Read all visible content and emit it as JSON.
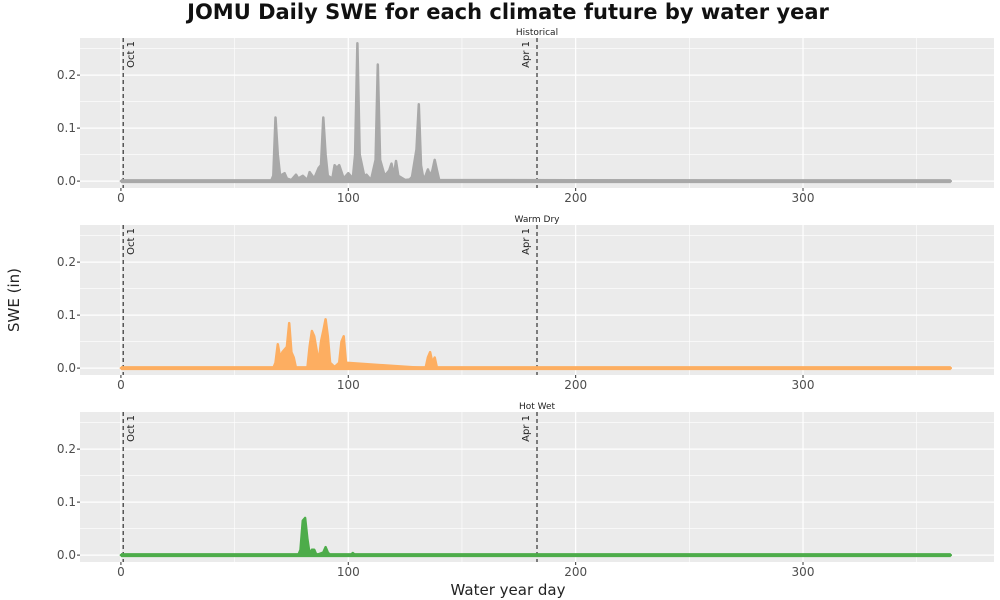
{
  "title": "JOMU Daily SWE for each climate future by water year",
  "chart_data": [
    {
      "type": "area",
      "facet": "Historical",
      "color": "#a8a8a8",
      "x": [
        0,
        66,
        67,
        68,
        69,
        70,
        72,
        73,
        75,
        77,
        78,
        80,
        82,
        83,
        85,
        87,
        88,
        89,
        90,
        91,
        93,
        94,
        95,
        96,
        98,
        100,
        102,
        103,
        104,
        105,
        107,
        108,
        110,
        112,
        113,
        114,
        116,
        118,
        119,
        120,
        121,
        122,
        125,
        127,
        128,
        130,
        131,
        132,
        133,
        134,
        135,
        136,
        137,
        138,
        139,
        140,
        365
      ],
      "y": [
        0,
        0,
        0.01,
        0.12,
        0.05,
        0.01,
        0.015,
        0.005,
        0.002,
        0.012,
        0.005,
        0.01,
        0.002,
        0.017,
        0.005,
        0.025,
        0.03,
        0.12,
        0.05,
        0.01,
        0.005,
        0.03,
        0.025,
        0.03,
        0.005,
        0.015,
        0.005,
        0.05,
        0.26,
        0.05,
        0.01,
        0.012,
        0.002,
        0.04,
        0.22,
        0.04,
        0.01,
        0.02,
        0.033,
        0.01,
        0.038,
        0.01,
        0.002,
        0.003,
        0.008,
        0.06,
        0.145,
        0.03,
        0.005,
        0.01,
        0.022,
        0.01,
        0.02,
        0.04,
        0.02,
        0.002,
        0
      ]
    },
    {
      "type": "area",
      "facet": "Warm Dry",
      "color": "#fdae61",
      "x": [
        0,
        67,
        68,
        69,
        70,
        71,
        72,
        73,
        74,
        75,
        76,
        77,
        82,
        83,
        84,
        85,
        86,
        87,
        88,
        89,
        90,
        91,
        92,
        94,
        96,
        97,
        98,
        99,
        134,
        135,
        136,
        137,
        138,
        139,
        365
      ],
      "y": [
        0,
        0,
        0.01,
        0.045,
        0.02,
        0.03,
        0.035,
        0.04,
        0.085,
        0.03,
        0.02,
        0,
        0,
        0.04,
        0.07,
        0.06,
        0.035,
        0.01,
        0.05,
        0.07,
        0.092,
        0.06,
        0.01,
        0.002,
        0.01,
        0.05,
        0.06,
        0.01,
        0,
        0.02,
        0.03,
        0.01,
        0.02,
        0,
        0
      ]
    },
    {
      "type": "area",
      "facet": "Hot Wet",
      "color": "#4dac4a",
      "x": [
        0,
        78,
        79,
        80,
        81,
        82,
        83,
        84,
        85,
        86,
        89,
        90,
        91,
        92,
        101,
        102,
        103,
        365
      ],
      "y": [
        0,
        0,
        0.01,
        0.065,
        0.07,
        0.03,
        0.002,
        0.01,
        0.01,
        0,
        0.005,
        0.015,
        0.005,
        0,
        0,
        0.004,
        0,
        0
      ]
    }
  ],
  "axes": {
    "xlabel": "Water year day",
    "ylabel": "SWE (in)",
    "xlim": [
      -18,
      384
    ],
    "ylim": [
      -0.013,
      0.27
    ],
    "xticks": [
      0,
      100,
      200,
      300
    ],
    "yticks": [
      0.0,
      0.1,
      0.2
    ],
    "ytick_labels": [
      "0.0",
      "0.1",
      "0.2"
    ]
  },
  "reference_lines": [
    {
      "x": 1,
      "label": "Oct 1"
    },
    {
      "x": 183,
      "label": "Apr 1"
    }
  ],
  "colors": {
    "panel_bg": "#ebebeb",
    "grid": "#ffffff",
    "refline": "#333333"
  }
}
